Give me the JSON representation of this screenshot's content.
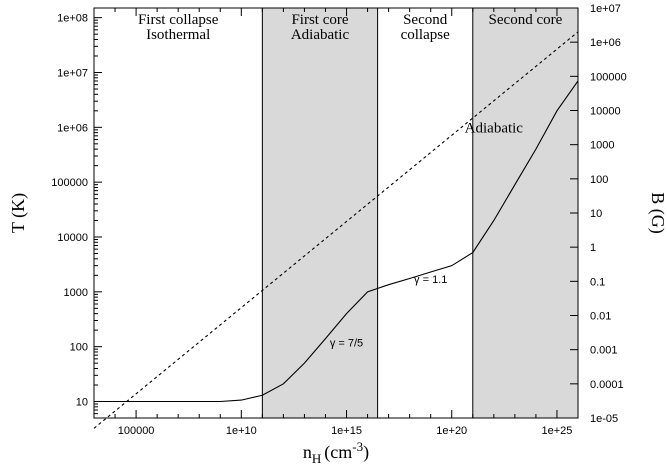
{
  "chart_data": {
    "type": "line",
    "xlabel": "n",
    "xlabel_sub": "H",
    "xlabel_unit": "(cm",
    "xlabel_sup": "-3",
    "xlabel_close": ")",
    "ylabel": "T (K)",
    "y2label": "B (G)",
    "x_scale": "log",
    "y_scale": "log",
    "y2_scale": "log",
    "xlim": [
      1000,
      1e+26
    ],
    "ylim": [
      5,
      150000000.0
    ],
    "y2lim": [
      1e-05,
      10000000.0
    ],
    "x_ticks": [
      {
        "value": 100000,
        "label": "100000"
      },
      {
        "value": 10000000000.0,
        "label": "1e+10"
      },
      {
        "value": 1000000000000000.0,
        "label": "1e+15"
      },
      {
        "value": 1e+20,
        "label": "1e+20"
      },
      {
        "value": 1e+25,
        "label": "1e+25"
      }
    ],
    "y_ticks": [
      {
        "value": 10,
        "label": "10"
      },
      {
        "value": 100,
        "label": "100"
      },
      {
        "value": 1000,
        "label": "1000"
      },
      {
        "value": 10000,
        "label": "10000"
      },
      {
        "value": 100000,
        "label": "100000"
      },
      {
        "value": 1000000,
        "label": "1e+06"
      },
      {
        "value": 10000000,
        "label": "1e+07"
      },
      {
        "value": 100000000,
        "label": "1e+08"
      }
    ],
    "y2_ticks": [
      {
        "value": 1e-05,
        "label": "1e-05"
      },
      {
        "value": 0.0001,
        "label": "0.0001"
      },
      {
        "value": 0.001,
        "label": "0.001"
      },
      {
        "value": 0.01,
        "label": "0.01"
      },
      {
        "value": 0.1,
        "label": "0.1"
      },
      {
        "value": 1,
        "label": "1"
      },
      {
        "value": 10,
        "label": "10"
      },
      {
        "value": 100,
        "label": "100"
      },
      {
        "value": 1000,
        "label": "1000"
      },
      {
        "value": 10000,
        "label": "10000"
      },
      {
        "value": 100000,
        "label": "100000"
      },
      {
        "value": 1000000,
        "label": "1e+06"
      },
      {
        "value": 10000000,
        "label": "1e+07"
      }
    ],
    "regions": [
      {
        "x0": 1000,
        "x1": 100000000000.0,
        "shaded": false,
        "lines": [
          "First collapse",
          "Isothermal"
        ]
      },
      {
        "x0": 100000000000.0,
        "x1": 3e+16,
        "shaded": true,
        "lines": [
          "First core",
          "Adiabatic"
        ]
      },
      {
        "x0": 3e+16,
        "x1": 1e+21,
        "shaded": false,
        "lines": [
          "Second",
          "collapse"
        ]
      },
      {
        "x0": 1e+21,
        "x1": 1e+26,
        "shaded": true,
        "lines": [
          "Second core"
        ]
      }
    ],
    "series": [
      {
        "style": "solid",
        "axis": "left",
        "points": [
          [
            1000,
            10
          ],
          [
            1000000.0,
            10
          ],
          [
            1000000000.0,
            10
          ],
          [
            10000000000.0,
            10.6
          ],
          [
            100000000000.0,
            13
          ],
          [
            1000000000000.0,
            21
          ],
          [
            10000000000000.0,
            50
          ],
          [
            100000000000000.0,
            140
          ],
          [
            1000000000000000.0,
            400
          ],
          [
            1e+16,
            1000
          ],
          [
            1e+17,
            1350
          ],
          [
            1e+18,
            1750
          ],
          [
            1e+19,
            2300
          ],
          [
            1e+20,
            3000
          ],
          [
            1e+21,
            5200
          ],
          [
            1e+22,
            20000
          ],
          [
            1e+23,
            90000
          ],
          [
            1e+24,
            400000
          ],
          [
            1e+25,
            2000000
          ],
          [
            1e+26,
            7000000
          ]
        ]
      },
      {
        "style": "dashed",
        "axis": "right",
        "points": [
          [
            1000,
            5e-06
          ],
          [
            1e+26,
            2000000.0
          ]
        ]
      }
    ],
    "annotations": [
      {
        "text": "γ = 7/5",
        "x": 1000000000000000.0,
        "y": 100,
        "font": "sans"
      },
      {
        "text": "γ = 1.1",
        "x": 1e+19,
        "y": 1450,
        "font": "sans"
      },
      {
        "text": "Adiabatic",
        "x": 1e+22,
        "y": 800000,
        "font": "serif"
      }
    ],
    "grid": false,
    "legend": "none"
  }
}
